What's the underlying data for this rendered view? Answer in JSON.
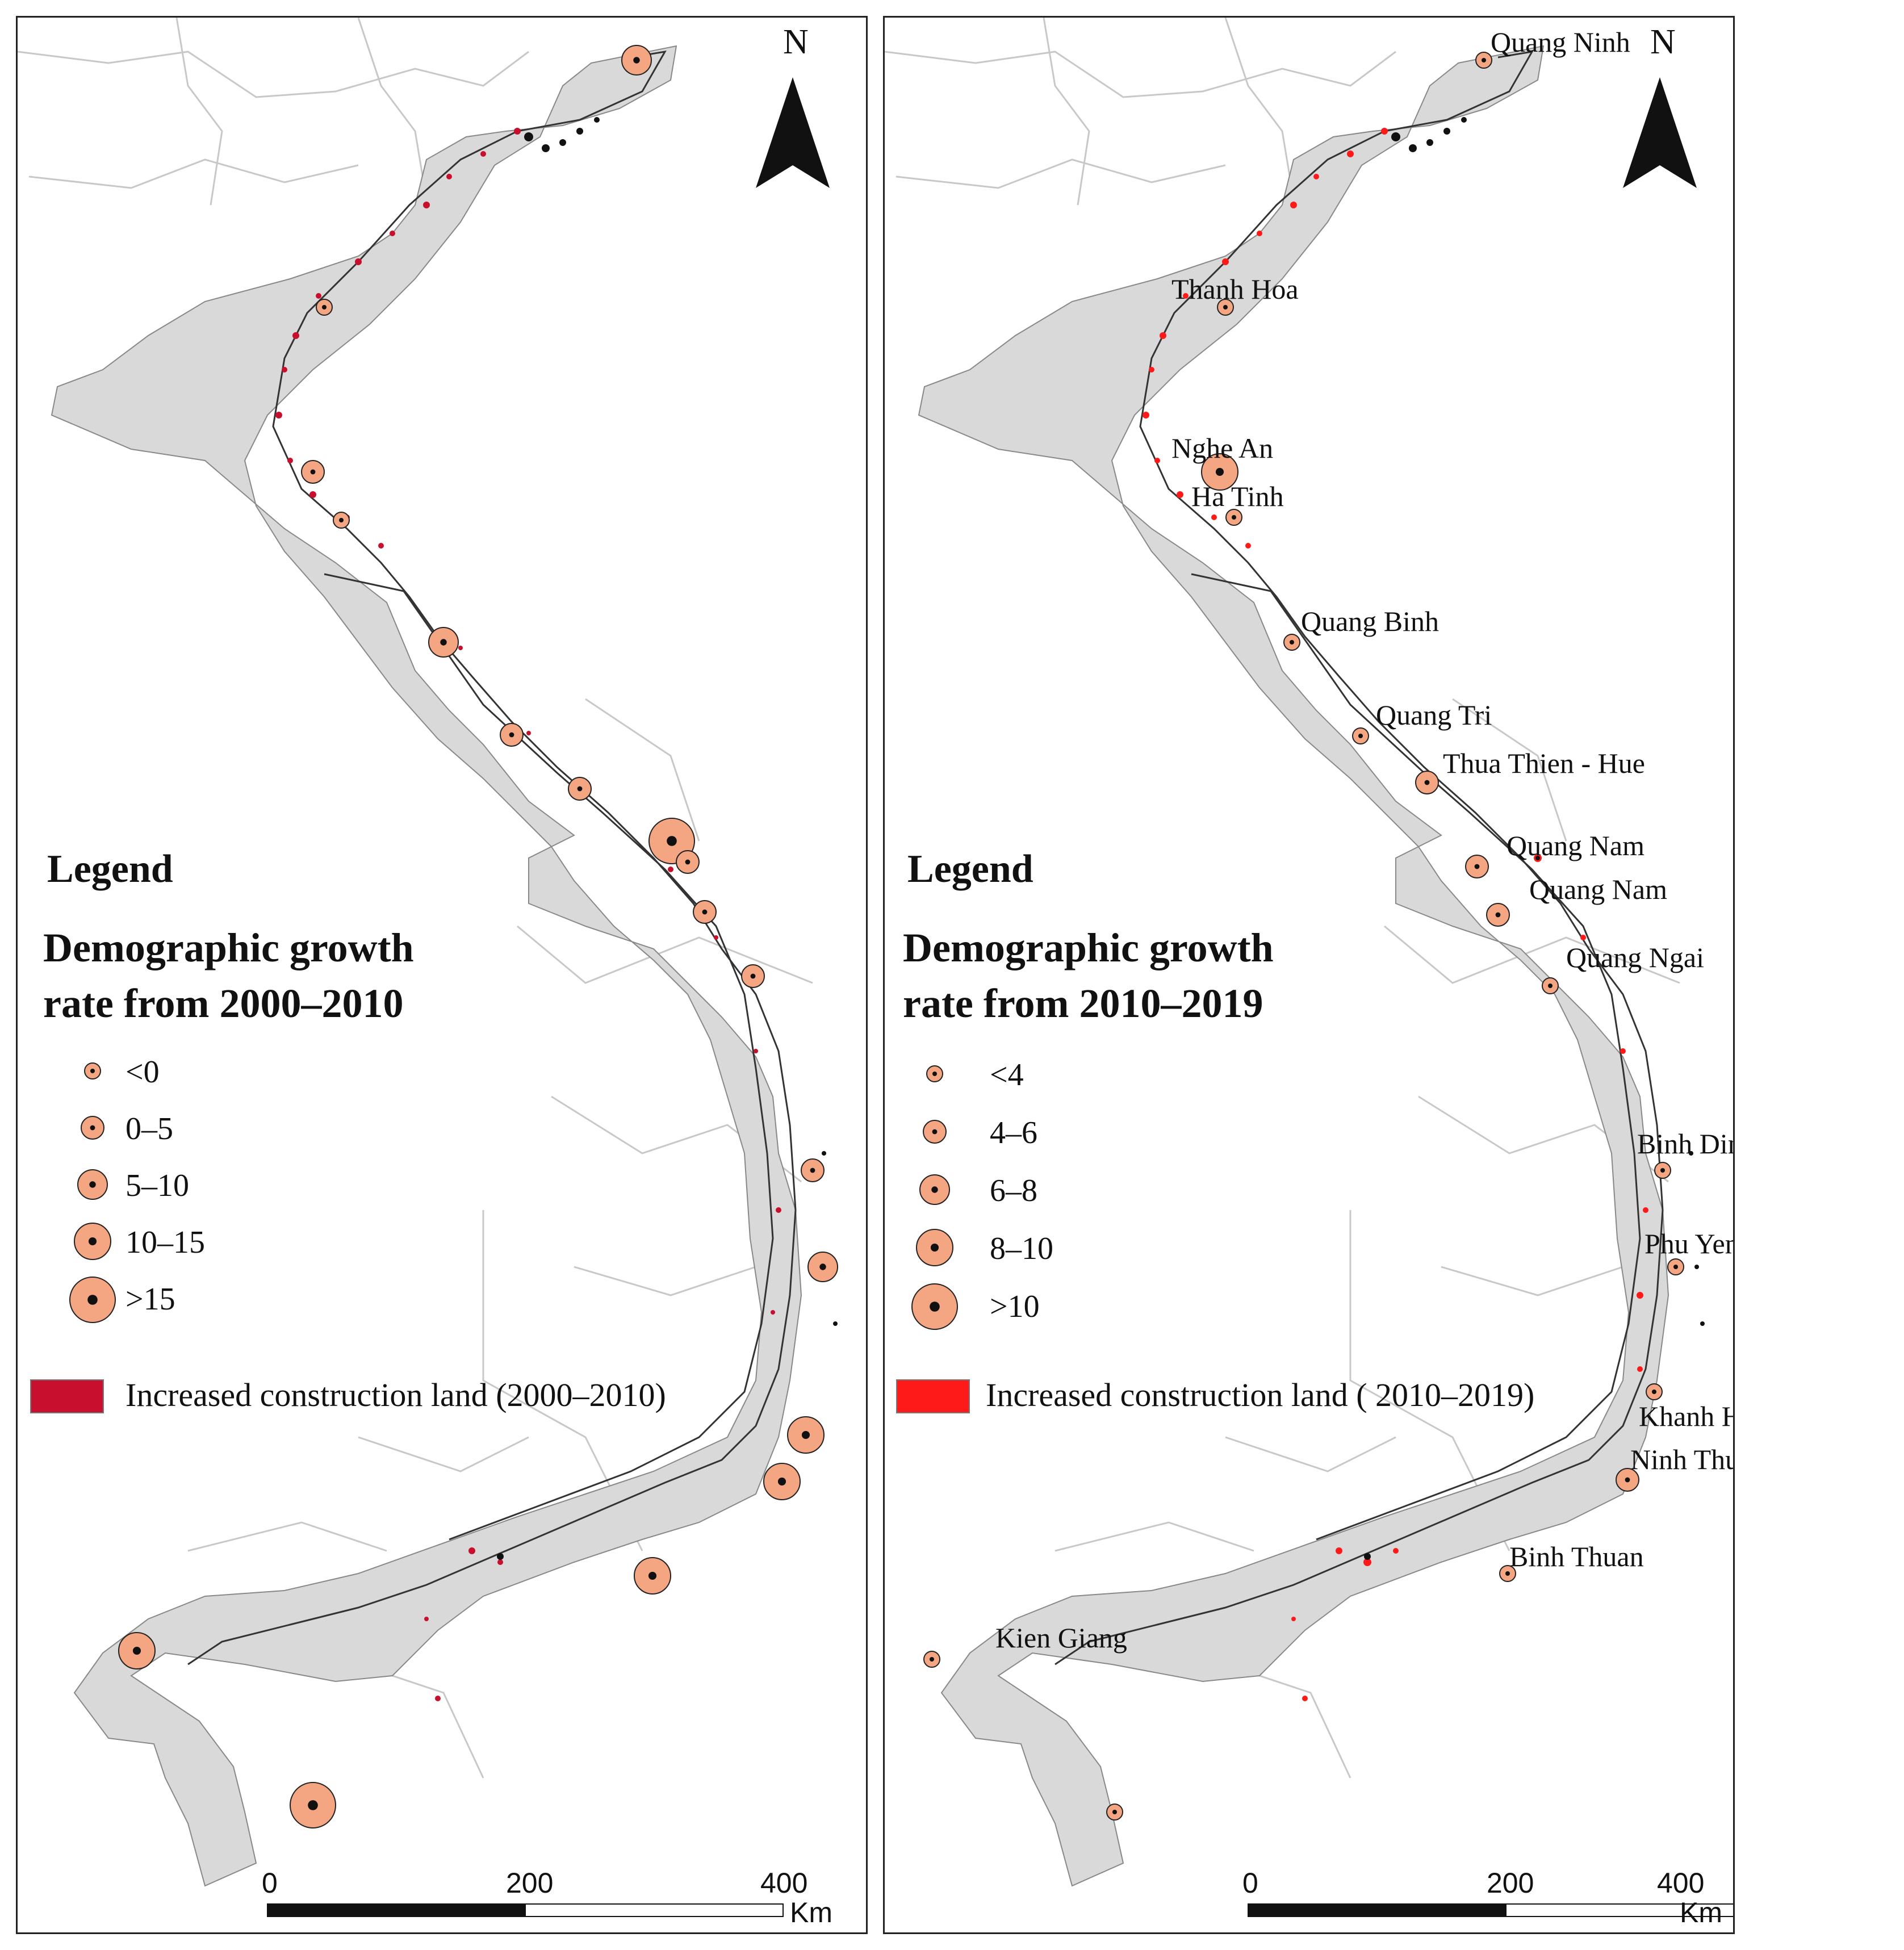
{
  "panels": {
    "left": {
      "north_label": "N",
      "legend_title": "Legend",
      "legend_heading_line1": "Demographic growth",
      "legend_heading_line2": "rate from 2000–2010",
      "classes": [
        "<0",
        "0–5",
        "5–10",
        "10–15",
        ">15"
      ],
      "construction_label": "Increased construction land (2000–2010)",
      "scale_ticks": [
        "0",
        "200",
        "400"
      ],
      "scale_unit": "Km",
      "provinces": []
    },
    "right": {
      "north_label": "N",
      "legend_title": "Legend",
      "legend_heading_line1": "Demographic growth",
      "legend_heading_line2": "rate from 2010–2019",
      "classes": [
        "<4",
        "4–6",
        "6–8",
        "8–10",
        ">10"
      ],
      "construction_label": "Increased construction land ( 2010–2019)",
      "scale_ticks": [
        "0",
        "200",
        "400"
      ],
      "scale_unit": "Km",
      "provinces": [
        "Quang Ninh",
        "Thanh Hoa",
        "Nghe An",
        "Ha Tinh",
        "Quang Binh",
        "Quang Tri",
        "Thua Thien - Hue",
        "Quang Nam",
        "Quang Nam",
        "Quang Ngai",
        "Binh Dinh",
        "Phu Yen",
        "Khanh Hoa",
        "Ninh Thuan",
        "Binh Thuan",
        "Kien Giang"
      ]
    }
  },
  "colors": {
    "circle_fill": "#f4a582",
    "region_fill": "#d9d9d9",
    "construction_left": "#c8102e",
    "construction_right": "#ff1a1a",
    "boundary": "#bdbdbd"
  }
}
